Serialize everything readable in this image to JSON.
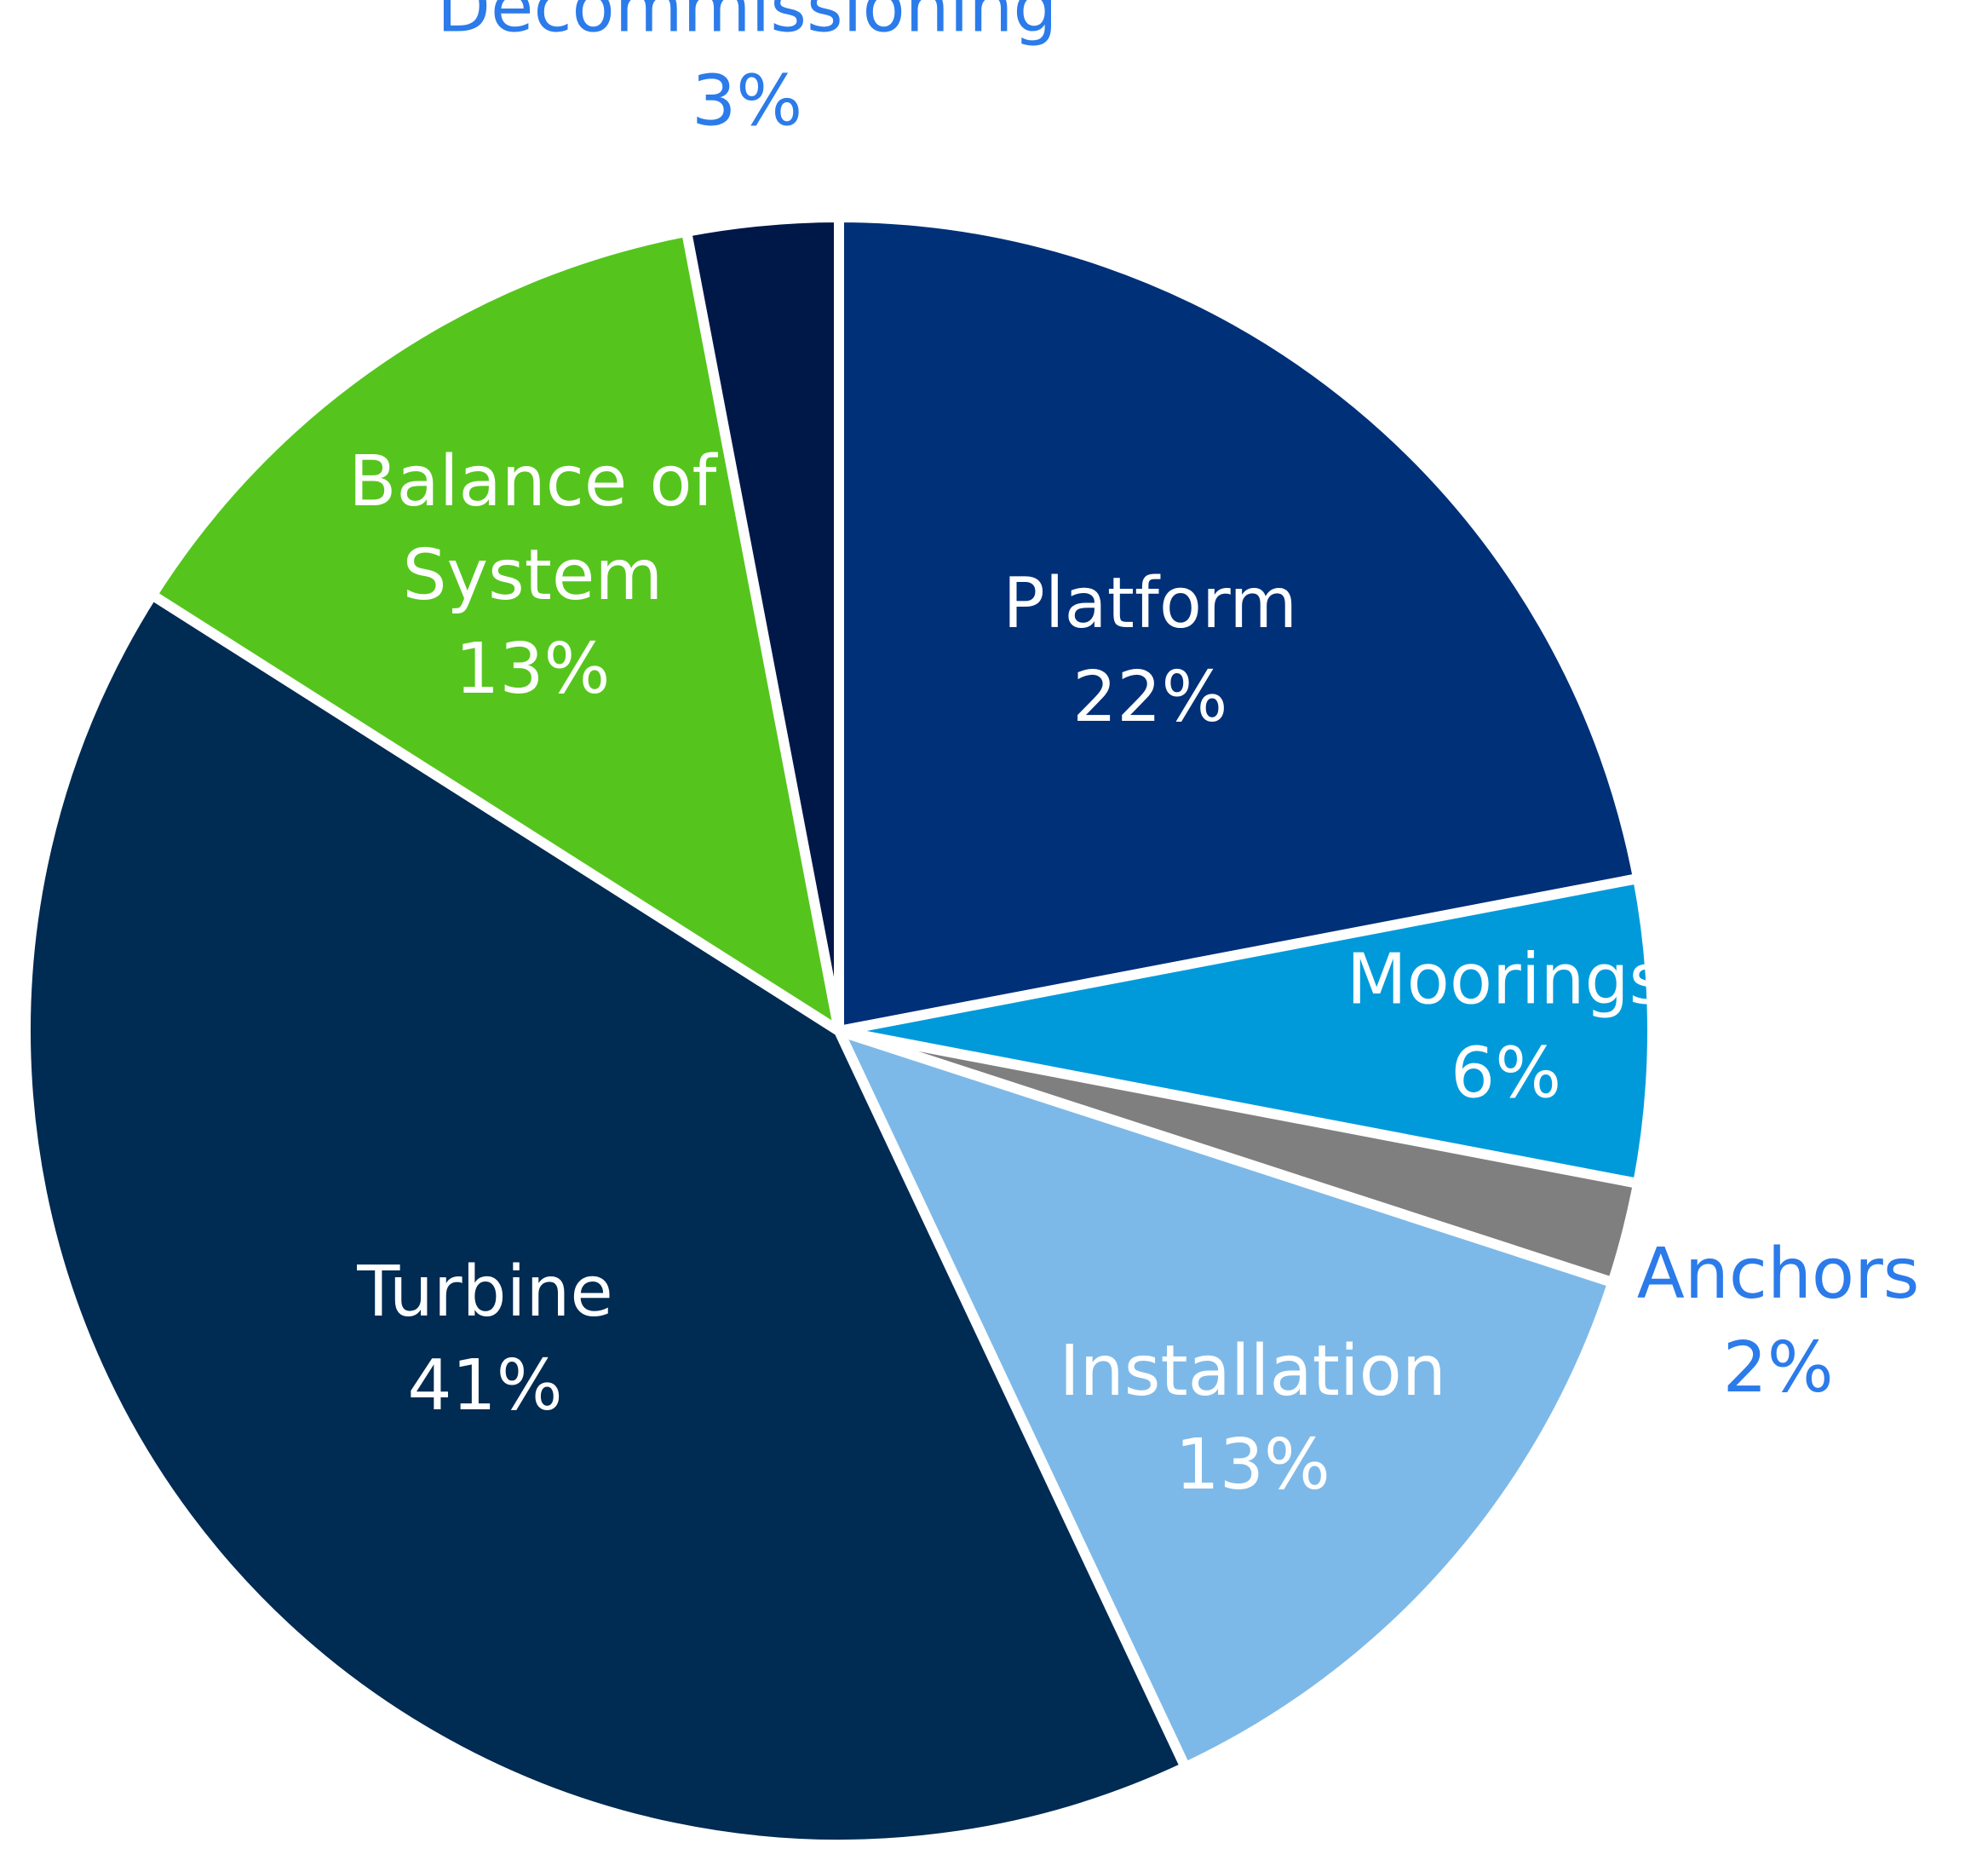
{
  "chart_data": {
    "type": "pie",
    "title": "",
    "slices": [
      {
        "label": "Platform",
        "value": 22,
        "value_label": "22%",
        "color": "#003078",
        "label_color": "#ffffff"
      },
      {
        "label": "Moorings",
        "value": 6,
        "value_label": "6%",
        "color": "#009ADB",
        "label_color": "#ffffff"
      },
      {
        "label": "Anchors",
        "value": 2,
        "value_label": "2%",
        "color": "#7F7F7F",
        "label_color": "#2B7BEA"
      },
      {
        "label": "Installation",
        "value": 13,
        "value_label": "13%",
        "color": "#7DB9E8",
        "label_color": "#ffffff"
      },
      {
        "label": "Turbine",
        "value": 41,
        "value_label": "41%",
        "color": "#002B53",
        "label_color": "#ffffff"
      },
      {
        "label": "Balance of System",
        "label_lines": [
          "Balance of",
          "System"
        ],
        "value": 13,
        "value_label": "13%",
        "color": "#55C51D",
        "label_color": "#ffffff"
      },
      {
        "label": "Decommissioning",
        "value": 3,
        "value_label": "3%",
        "color": "#001848",
        "label_color": "#2B7BEA"
      }
    ],
    "start_angle_deg": 0,
    "direction": "clockwise",
    "legend": "none",
    "labels": "on-slices"
  }
}
